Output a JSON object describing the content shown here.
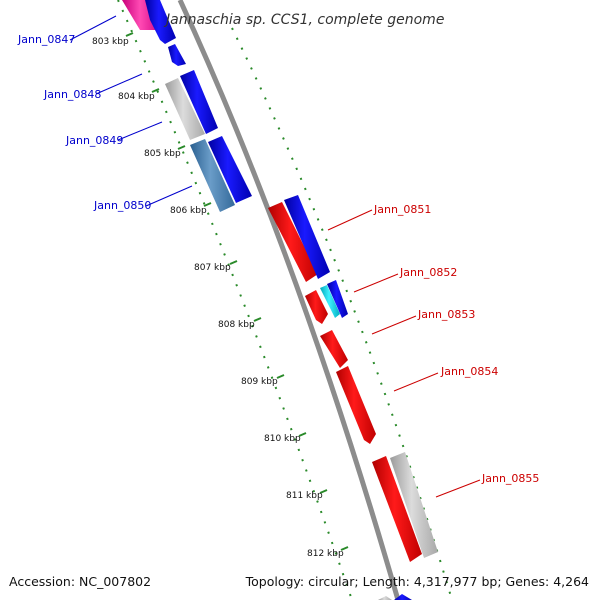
{
  "title": "Jannaschia sp. CCS1, complete genome",
  "accession": "Accession: NC_007802",
  "summary": "Topology: circular; Length: 4,317,977 bp; Genes: 4,264",
  "colors": {
    "backbone": "#8c8c8c",
    "tick": "#2a8a2a",
    "left_label": "#0000cc",
    "right_label": "#cc0000"
  },
  "kbp_ticks": [
    "803 kbp",
    "804 kbp",
    "805 kbp",
    "806 kbp",
    "807 kbp",
    "808 kbp",
    "809 kbp",
    "810 kbp",
    "811 kbp",
    "812 kbp"
  ],
  "left_genes": [
    "Jann_0847",
    "Jann_0848",
    "Jann_0849",
    "Jann_0850"
  ],
  "right_genes": [
    "Jann_0851",
    "Jann_0852",
    "Jann_0853",
    "Jann_0854",
    "Jann_0855"
  ]
}
